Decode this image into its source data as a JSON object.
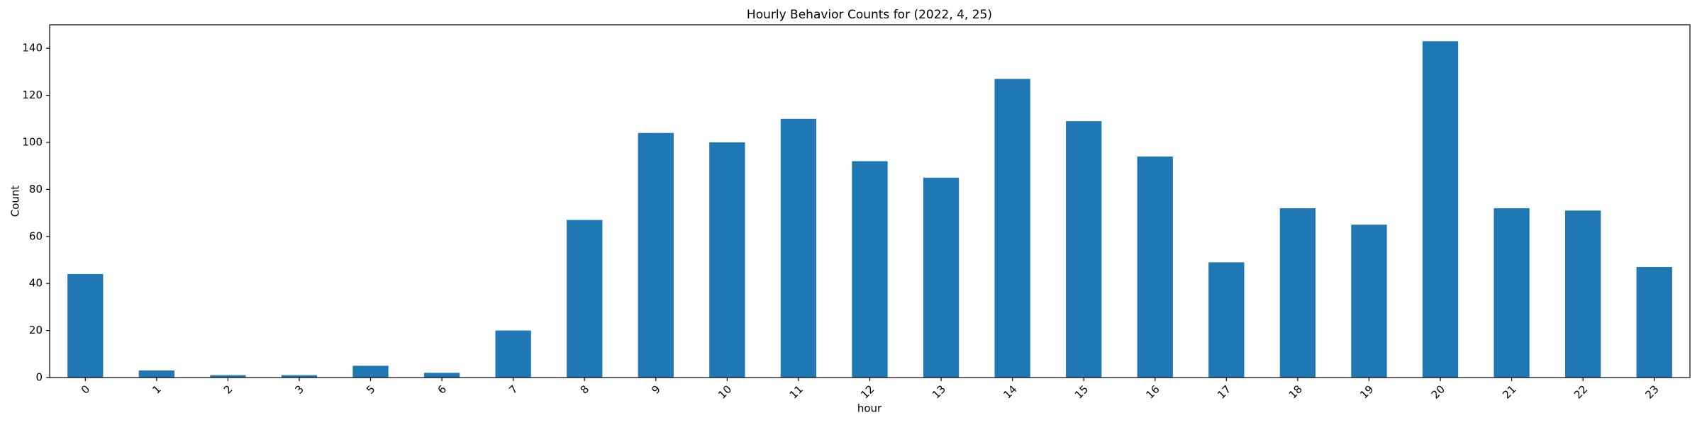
{
  "chart_data": {
    "type": "bar",
    "title": "Hourly Behavior Counts for (2022, 4, 25)",
    "xlabel": "hour",
    "ylabel": "Count",
    "categories": [
      "0",
      "1",
      "2",
      "3",
      "5",
      "6",
      "7",
      "8",
      "9",
      "10",
      "11",
      "12",
      "13",
      "14",
      "15",
      "16",
      "17",
      "18",
      "19",
      "20",
      "21",
      "22",
      "23"
    ],
    "values": [
      44,
      3,
      1,
      1,
      5,
      2,
      20,
      67,
      104,
      100,
      110,
      92,
      85,
      127,
      109,
      94,
      49,
      72,
      65,
      143,
      72,
      71,
      47
    ],
    "color": "#1f77b4",
    "ylim": [
      0,
      150
    ],
    "yticks": [
      0,
      20,
      40,
      60,
      80,
      100,
      120,
      140
    ],
    "grid": false
  }
}
